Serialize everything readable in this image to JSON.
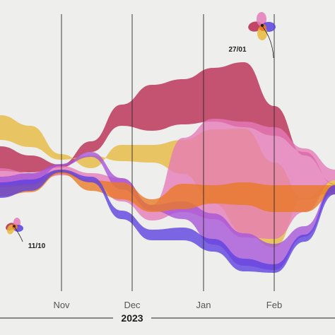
{
  "chart_data": {
    "type": "area",
    "subtype": "streamgraph",
    "x_tick_labels": [
      "Nov",
      "Dec",
      "Jan",
      "Feb"
    ],
    "year_label": "2023",
    "series": [
      {
        "color": "#b8284f",
        "top": [
          207,
          220,
          233,
          200,
          148,
          120,
          112,
          96,
          88,
          150,
          220,
          260
        ],
        "bottom": [
          242,
          244,
          237,
          215,
          178,
          185,
          176,
          172,
          180,
          192,
          215,
          262
        ]
      },
      {
        "color": "#e8b93c",
        "top": [
          163,
          178,
          218,
          238,
          205,
          205,
          198,
          183,
          182,
          230,
          282,
          272
        ],
        "bottom": [
          198,
          208,
          226,
          220,
          228,
          230,
          246,
          288,
          330,
          350,
          280,
          255
        ]
      },
      {
        "color": "#e57ab8",
        "top": [
          238,
          245,
          235,
          245,
          252,
          290,
          195,
          168,
          172,
          180,
          210,
          240
        ],
        "bottom": [
          262,
          262,
          248,
          255,
          285,
          312,
          300,
          310,
          336,
          338,
          300,
          255
        ]
      },
      {
        "color": "#a553d8",
        "top": [
          250,
          245,
          232,
          215,
          252,
          290,
          285,
          302,
          330,
          345,
          320,
          262
        ],
        "bottom": [
          265,
          262,
          235,
          222,
          268,
          298,
          310,
          346,
          376,
          382,
          335,
          270
        ]
      },
      {
        "color": "#e97a24",
        "top": [
          262,
          260,
          240,
          255,
          258,
          282,
          260,
          262,
          258,
          262,
          262,
          262
        ],
        "bottom": [
          278,
          272,
          246,
          270,
          282,
          300,
          296,
          288,
          290,
          300,
          300,
          275
        ]
      },
      {
        "color": "#5b3fe0",
        "top": [
          258,
          254,
          240,
          250,
          298,
          325,
          322,
          338,
          366,
          374,
          332,
          262
        ],
        "bottom": [
          280,
          270,
          244,
          258,
          310,
          340,
          340,
          356,
          384,
          386,
          342,
          275
        ]
      }
    ],
    "annotations": [
      {
        "label": "11/10",
        "axis_index": 0
      },
      {
        "label": "27/01",
        "axis_index": 3
      }
    ],
    "grid": false,
    "legend": "none"
  }
}
